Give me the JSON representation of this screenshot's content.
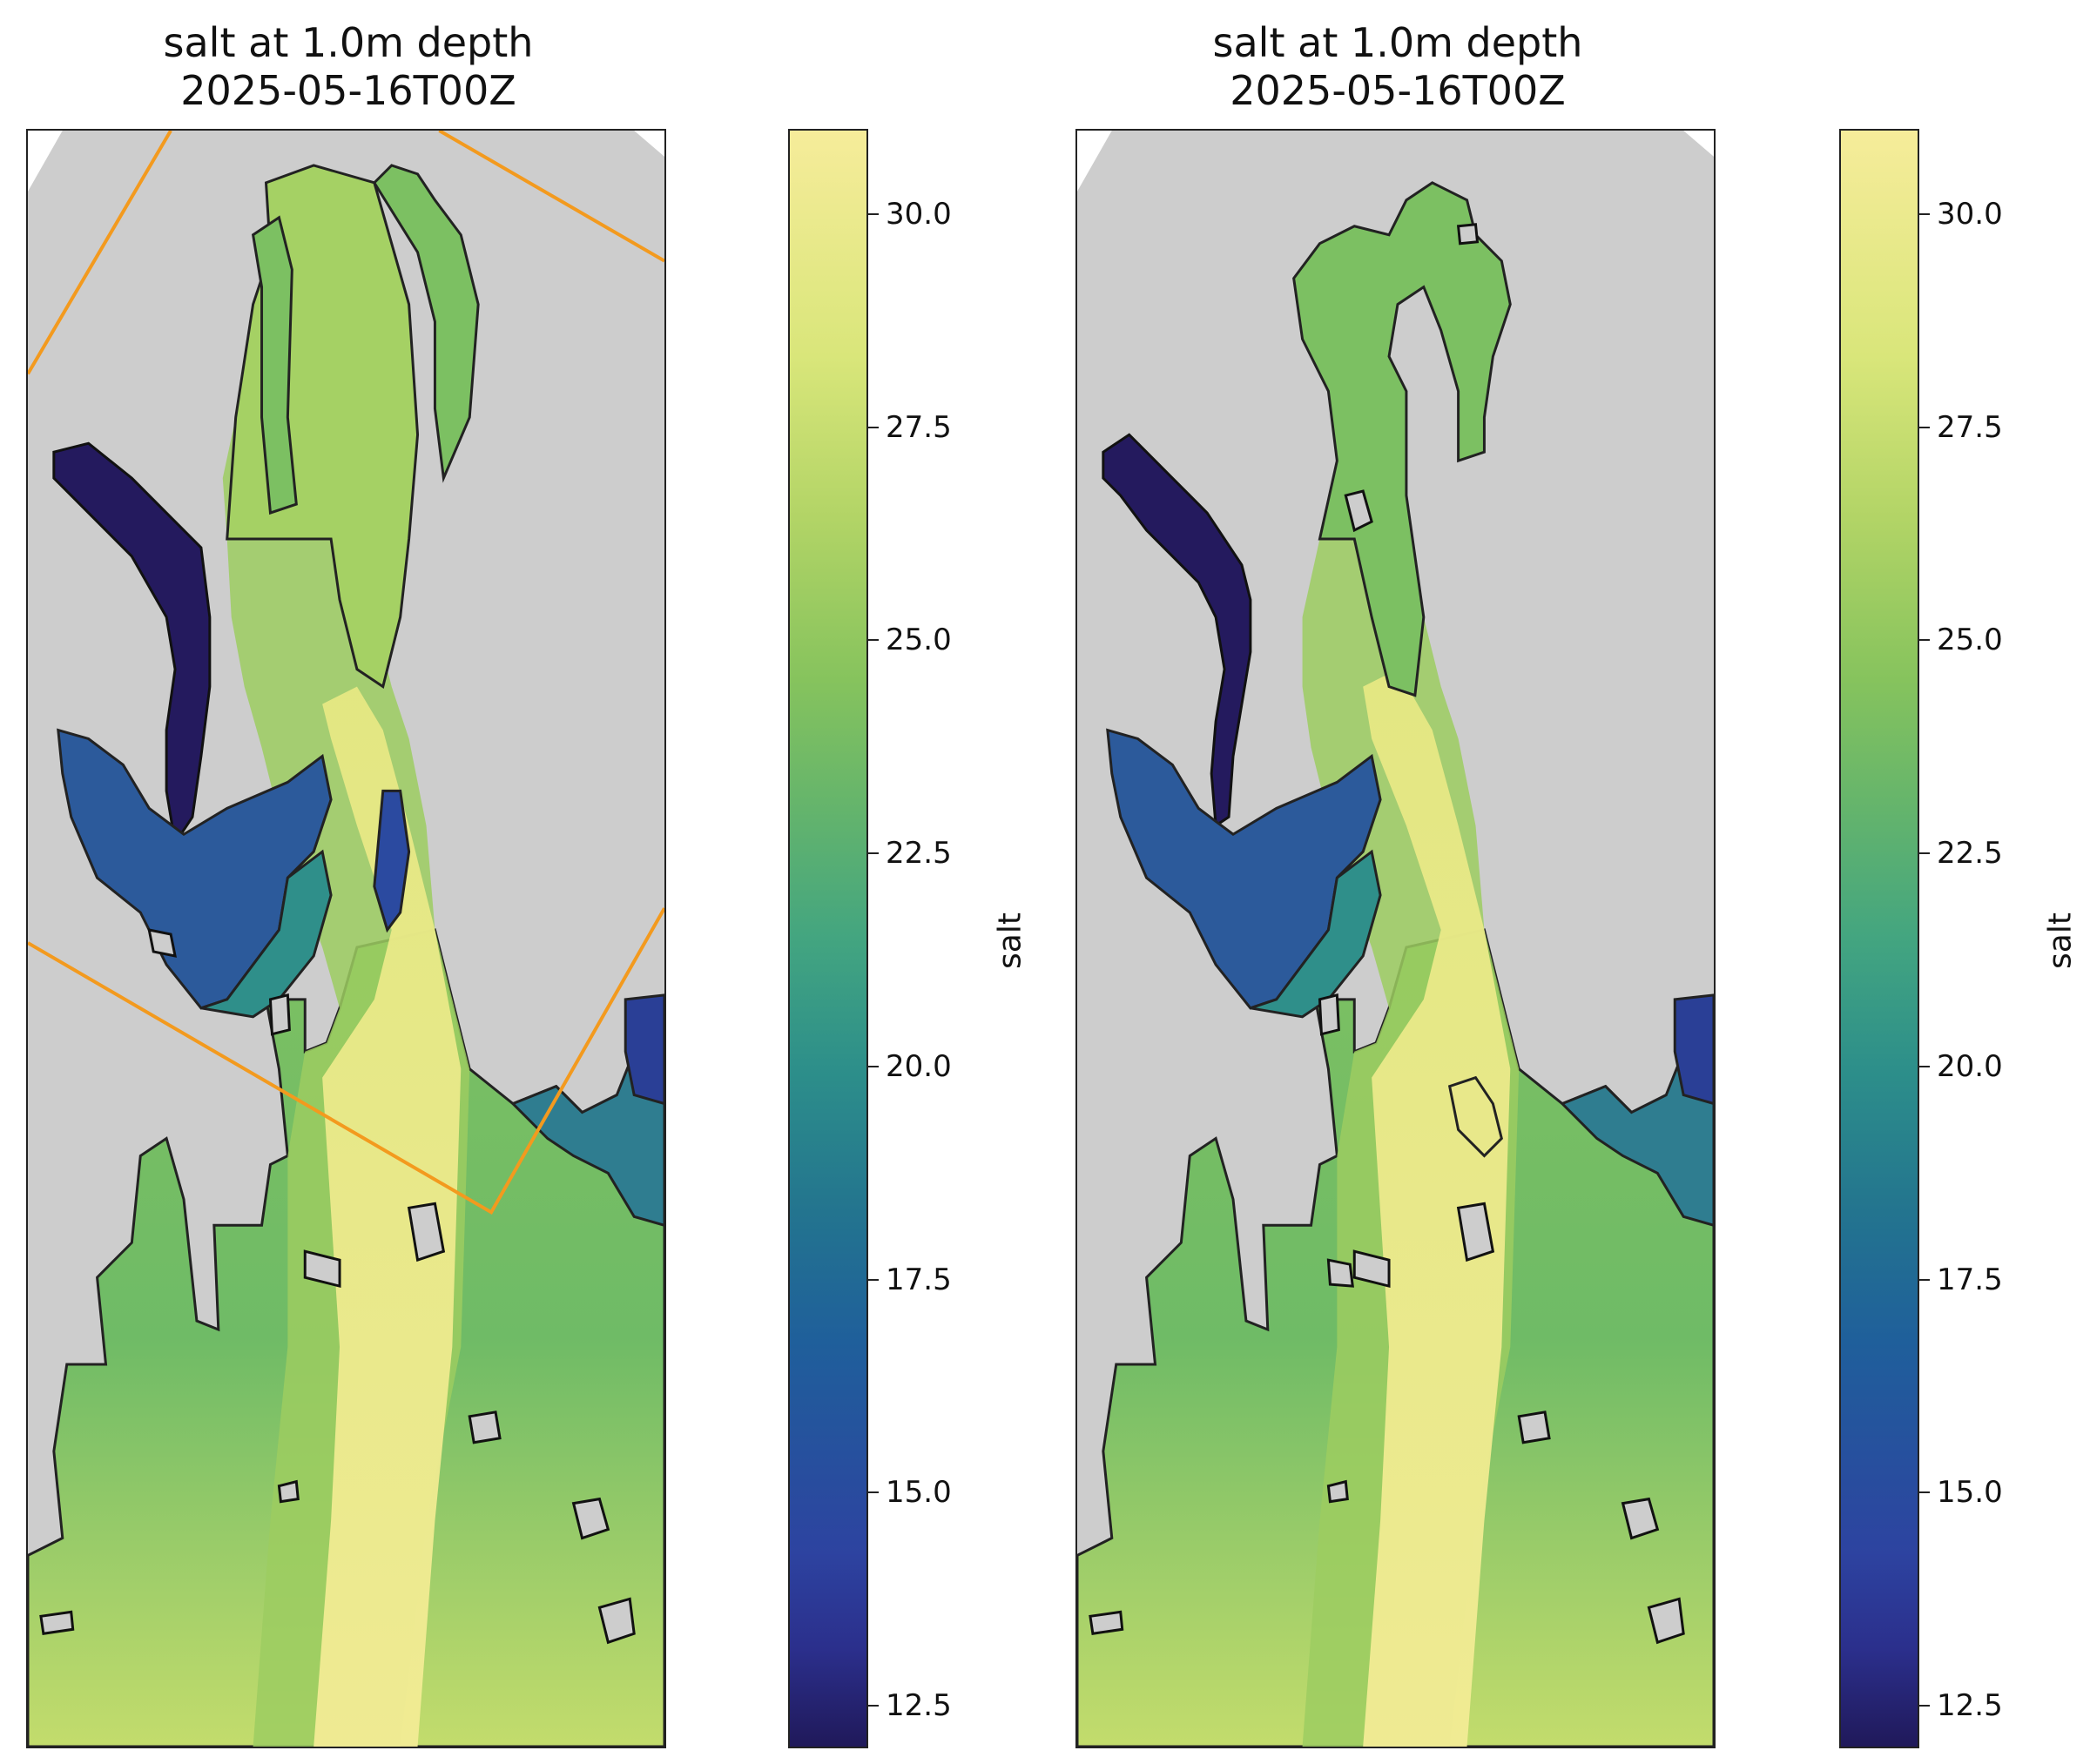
{
  "panels": [
    {
      "title_line1": "salt at 1.0m depth",
      "title_line2": "2025-05-16T00Z",
      "has_subdomain_box": true,
      "colorbar_label": "salt"
    },
    {
      "title_line1": "salt at 1.0m depth",
      "title_line2": "2025-05-16T00Z",
      "has_subdomain_box": false,
      "colorbar_label": "salt"
    }
  ],
  "colorbar": {
    "range": [
      12.0,
      31.0
    ],
    "ticks": [
      "12.5",
      "15.0",
      "17.5",
      "20.0",
      "22.5",
      "25.0",
      "27.5",
      "30.0"
    ],
    "tick_values": [
      12.5,
      15.0,
      17.5,
      20.0,
      22.5,
      25.0,
      27.5,
      30.0
    ],
    "colormap": "haline-like (dark indigo to pale yellow)"
  },
  "colors": {
    "land": "#cdcdcd",
    "box": "#f39a1e",
    "coast": "#111111"
  }
}
